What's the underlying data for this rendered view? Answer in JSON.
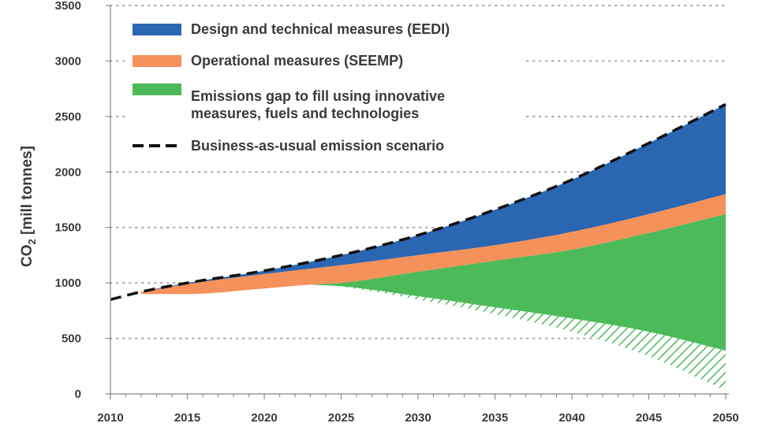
{
  "chart_data": {
    "type": "area",
    "title": "",
    "xlabel": "",
    "ylabel": "CO",
    "ylabel_subscript": "2",
    "ylabel_unit": " [mill tonnes]",
    "xlim": [
      2010,
      2050
    ],
    "ylim": [
      0,
      3500
    ],
    "x_ticks": [
      2010,
      2015,
      2020,
      2025,
      2030,
      2035,
      2040,
      2045,
      2050
    ],
    "y_ticks": [
      0,
      500,
      1000,
      1500,
      2000,
      2500,
      3000,
      3500
    ],
    "grid": "horizontal dotted",
    "legend_position": "top-left",
    "legend": [
      {
        "key": "eedi",
        "label": "Design and technical measures (EEDI)",
        "color": "#2b66b3",
        "style": "patch"
      },
      {
        "key": "seemp",
        "label": "Operational measures (SEEMP)",
        "color": "#f5915a",
        "style": "patch"
      },
      {
        "key": "gap",
        "label": "Emissions gap to fill using innovative",
        "label2": "measures, fuels and technologies",
        "color": "#4dba5a",
        "style": "patch"
      },
      {
        "key": "bau",
        "label": "Business-as-usual emission scenario",
        "color": "#111111",
        "style": "dashed"
      }
    ],
    "series": [
      {
        "name": "Business-as-usual emission scenario",
        "x": [
          2010,
          2012,
          2015,
          2020,
          2025,
          2030,
          2035,
          2040,
          2045,
          2050
        ],
        "values": [
          850,
          920,
          1000,
          1110,
          1250,
          1430,
          1660,
          1930,
          2260,
          2610
        ]
      },
      {
        "name": "Operational measures (SEEMP) upper",
        "x": [
          2012,
          2015,
          2020,
          2025,
          2030,
          2035,
          2040,
          2045,
          2050
        ],
        "values": [
          920,
          990,
          1080,
          1160,
          1250,
          1340,
          1460,
          1620,
          1800
        ]
      },
      {
        "name": "Emissions gap upper",
        "x": [
          2012,
          2015,
          2020,
          2023,
          2025,
          2030,
          2035,
          2040,
          2045,
          2050
        ],
        "values": [
          900,
          900,
          950,
          985,
          1000,
          1100,
          1200,
          1300,
          1450,
          1620
        ]
      },
      {
        "name": "Emissions gap lower",
        "x": [
          2023,
          2025,
          2030,
          2035,
          2040,
          2045,
          2050
        ],
        "values": [
          985,
          970,
          880,
          780,
          680,
          560,
          390
        ]
      },
      {
        "name": "Hatched area lower",
        "x": [
          2023,
          2025,
          2030,
          2035,
          2040,
          2045,
          2050
        ],
        "values": [
          985,
          965,
          850,
          720,
          560,
          340,
          30
        ]
      }
    ]
  }
}
